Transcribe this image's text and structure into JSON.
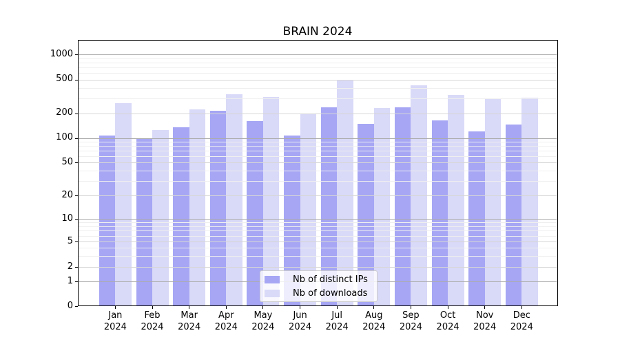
{
  "title": "BRAIN 2024",
  "colors": {
    "ips_bar": "#a6a6f5",
    "downloads_bar": "#d9d9f8",
    "grid_major_power": "#ababab",
    "grid_major": "#d6d6d6",
    "grid_minor": "#efefef",
    "spine": "#000000"
  },
  "legend": {
    "items": [
      {
        "key": "ips",
        "label": "Nb of distinct IPs"
      },
      {
        "key": "downloads",
        "label": "Nb of downloads"
      }
    ]
  },
  "chart_data": {
    "type": "bar",
    "title": "BRAIN 2024",
    "y_scale": "symlog",
    "grid": "horizontal major+minor, drawn over bars",
    "legend_position": "lower center",
    "year": "2024",
    "months": [
      "Jan",
      "Feb",
      "Mar",
      "Apr",
      "May",
      "Jun",
      "Jul",
      "Aug",
      "Sep",
      "Oct",
      "Nov",
      "Dec"
    ],
    "categories": [
      "Jan 2024",
      "Feb 2024",
      "Mar 2024",
      "Apr 2024",
      "May 2024",
      "Jun 2024",
      "Jul 2024",
      "Aug 2024",
      "Sep 2024",
      "Oct 2024",
      "Nov 2024",
      "Dec 2024"
    ],
    "y_ticks": [
      0,
      1,
      2,
      5,
      10,
      20,
      50,
      100,
      200,
      500,
      1000
    ],
    "y_minor_ticks": [
      3,
      4,
      6,
      7,
      8,
      9,
      30,
      40,
      60,
      70,
      80,
      90,
      300,
      400,
      600,
      700,
      800,
      900
    ],
    "ylim": [
      0,
      1600
    ],
    "series": [
      {
        "name": "Nb of distinct IPs",
        "values": [
          108,
          97,
          135,
          212,
          160,
          107,
          235,
          148,
          233,
          165,
          120,
          146
        ]
      },
      {
        "name": "Nb of downloads",
        "values": [
          265,
          125,
          220,
          335,
          310,
          199,
          500,
          230,
          425,
          330,
          295,
          305
        ]
      }
    ]
  }
}
